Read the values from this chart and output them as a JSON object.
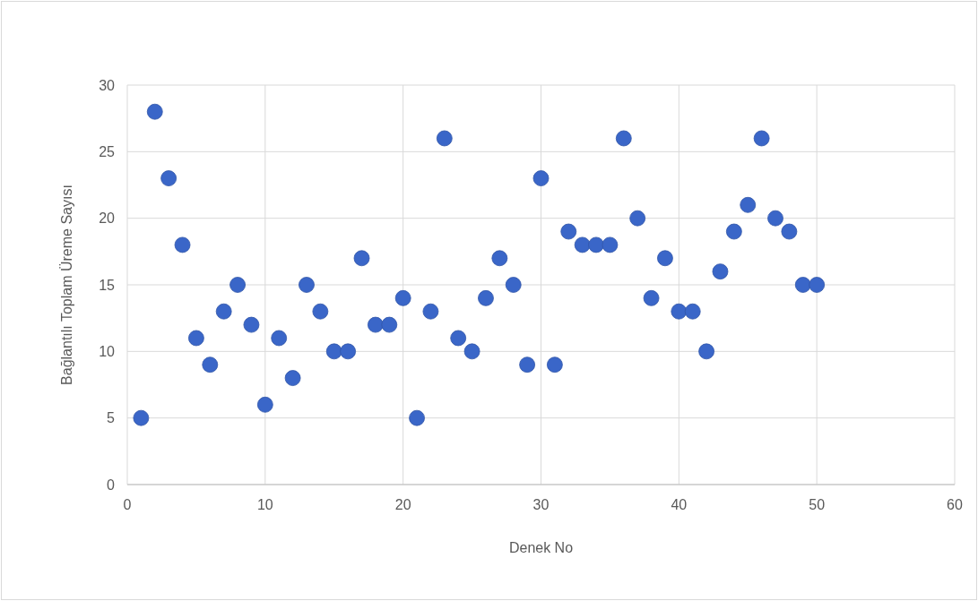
{
  "chart_data": {
    "type": "scatter",
    "xlabel": "Denek No",
    "ylabel": "Bağlantılı Toplam Üreme Sayısı",
    "x": [
      1,
      2,
      3,
      4,
      5,
      6,
      7,
      8,
      9,
      10,
      11,
      12,
      13,
      14,
      15,
      16,
      17,
      18,
      19,
      20,
      21,
      22,
      23,
      24,
      25,
      26,
      27,
      28,
      29,
      30,
      31,
      32,
      33,
      34,
      35,
      36,
      37,
      38,
      39,
      40,
      41,
      42,
      43,
      44,
      45,
      46,
      47,
      48,
      49,
      50
    ],
    "series": [
      {
        "color": "#3a66c8",
        "values": [
          5,
          28,
          23,
          18,
          11,
          9,
          13,
          15,
          12,
          6,
          11,
          8,
          15,
          13,
          10,
          10,
          17,
          12,
          12,
          14,
          5,
          13,
          26,
          11,
          10,
          14,
          17,
          15,
          9,
          23,
          9,
          19,
          18,
          18,
          18,
          26,
          20,
          14,
          17,
          13,
          13,
          10,
          16,
          19,
          21,
          26,
          20,
          19,
          15,
          15
        ]
      }
    ],
    "xlim": [
      0,
      60
    ],
    "xticks": [
      0,
      10,
      20,
      30,
      40,
      50,
      60
    ],
    "ylim": [
      0,
      30
    ],
    "yticks": [
      0,
      5,
      10,
      15,
      20,
      25,
      30
    ],
    "grid": true,
    "marker": "circle"
  }
}
